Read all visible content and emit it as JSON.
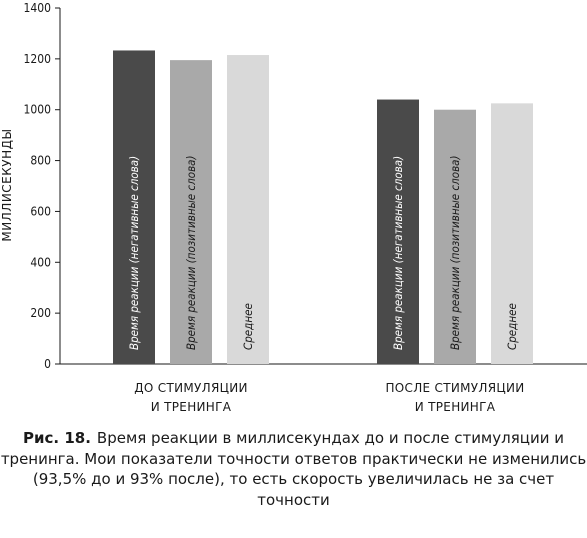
{
  "chart_data": {
    "type": "bar",
    "ylabel": "МИЛЛИСЕКУНДЫ",
    "ylim": [
      0,
      1400
    ],
    "yticks": [
      0,
      200,
      400,
      600,
      800,
      1000,
      1200,
      1400
    ],
    "grid": false,
    "categories": [
      [
        "ДО СТИМУЛЯЦИИ",
        "И ТРЕНИНГА"
      ],
      [
        "ПОСЛЕ СТИМУЛЯЦИИ",
        "И ТРЕНИНГА"
      ]
    ],
    "series": [
      {
        "name": "Время реакции (негативные слова)",
        "color": "#4a4a4a",
        "label_color": "#ffffff",
        "values": [
          1233,
          1040
        ]
      },
      {
        "name": "Время реакции (позитивные слова)",
        "color": "#a9a9a9",
        "label_color": "#1a1a1a",
        "values": [
          1195,
          1000
        ]
      },
      {
        "name": "Среднее",
        "color": "#d9d9d9",
        "label_color": "#1a1a1a",
        "values": [
          1215,
          1025
        ]
      }
    ]
  },
  "caption": {
    "prefix": "Рис. 18.",
    "text": "Время реакции в миллисекундах до и после стимуляции и тренинга. Мои показатели точности ответов практически не изменились (93,5% до и 93% после), то есть скорость увеличилась не за счет точности"
  }
}
